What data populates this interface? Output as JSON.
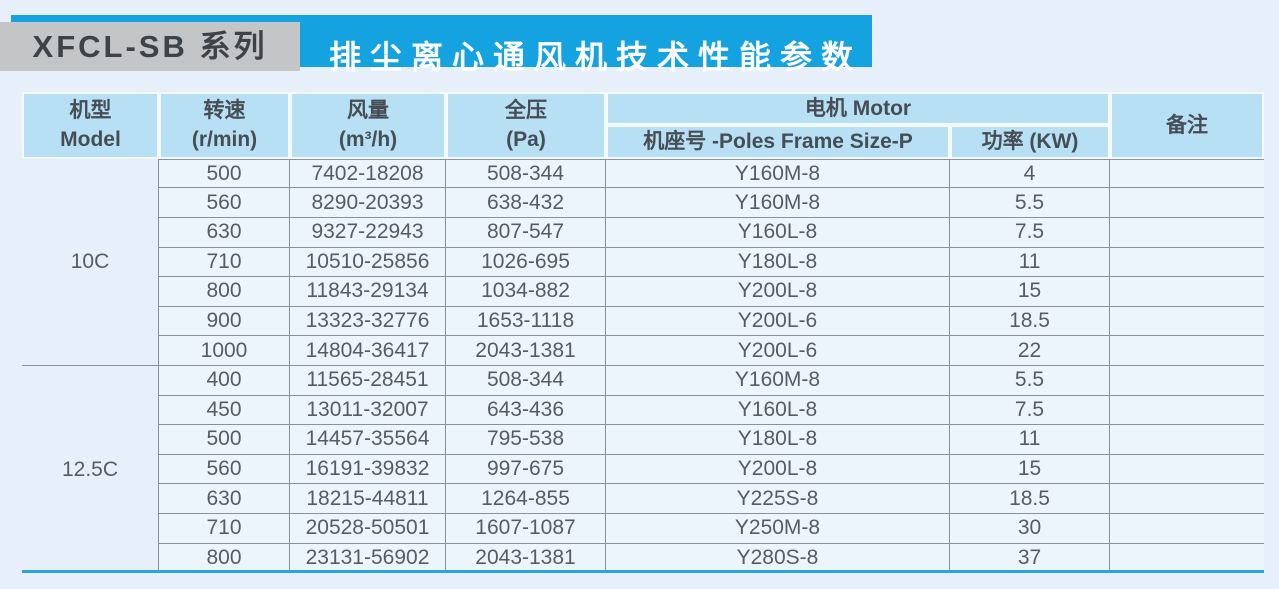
{
  "banner": {
    "series": "XFCL-SB 系列",
    "title": "排尘离心通风机技术性能参数"
  },
  "table": {
    "header": {
      "model_zh": "机型",
      "model_en": "Model",
      "speed_zh": "转速",
      "speed_unit": "(r/min)",
      "airflow_zh": "风量",
      "airflow_unit": "(m³/h)",
      "pressure_zh": "全压",
      "pressure_unit": "(Pa)",
      "motor_group": "电机 Motor",
      "frame_size": "机座号 -Poles Frame Size-P",
      "power": "功率 (KW)",
      "remarks": "备注"
    },
    "sections": [
      {
        "model": "10C",
        "rows": [
          [
            "500",
            "7402-18208",
            "508-344",
            "Y160M-8",
            "4",
            ""
          ],
          [
            "560",
            "8290-20393",
            "638-432",
            "Y160M-8",
            "5.5",
            ""
          ],
          [
            "630",
            "9327-22943",
            "807-547",
            "Y160L-8",
            "7.5",
            ""
          ],
          [
            "710",
            "10510-25856",
            "1026-695",
            "Y180L-8",
            "11",
            ""
          ],
          [
            "800",
            "11843-29134",
            "1034-882",
            "Y200L-8",
            "15",
            ""
          ],
          [
            "900",
            "13323-32776",
            "1653-1118",
            "Y200L-6",
            "18.5",
            ""
          ],
          [
            "1000",
            "14804-36417",
            "2043-1381",
            "Y200L-6",
            "22",
            ""
          ]
        ]
      },
      {
        "model": "12.5C",
        "rows": [
          [
            "400",
            "11565-28451",
            "508-344",
            "Y160M-8",
            "5.5",
            ""
          ],
          [
            "450",
            "13011-32007",
            "643-436",
            "Y160L-8",
            "7.5",
            ""
          ],
          [
            "500",
            "14457-35564",
            "795-538",
            "Y180L-8",
            "11",
            ""
          ],
          [
            "560",
            "16191-39832",
            "997-675",
            "Y200L-8",
            "15",
            ""
          ],
          [
            "630",
            "18215-44811",
            "1264-855",
            "Y225S-8",
            "18.5",
            ""
          ],
          [
            "710",
            "20528-50501",
            "1607-1087",
            "Y250M-8",
            "30",
            ""
          ],
          [
            "800",
            "23131-56902",
            "2043-1381",
            "Y280S-8",
            "37",
            ""
          ]
        ]
      }
    ]
  },
  "colors": {
    "banner_blue": "#14a3e0",
    "header_bg": "#b7e0f5",
    "accent_line": "#2aa4e0",
    "label_gray": "#c3c5c7"
  }
}
